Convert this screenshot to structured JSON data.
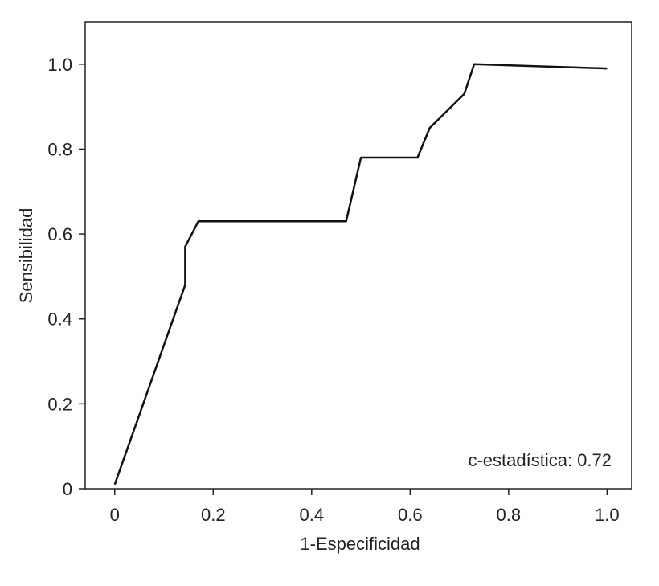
{
  "chart_data": {
    "type": "line",
    "title": "",
    "xlabel": "1-Especificidad",
    "ylabel": "Sensibilidad",
    "xlim": [
      -0.06,
      1.05
    ],
    "ylim": [
      0,
      1.1
    ],
    "x_ticks": [
      0,
      0.2,
      0.4,
      0.6,
      0.8,
      1.0
    ],
    "x_tick_labels": [
      "0",
      "0.2",
      "0.4",
      "0.6",
      "0.8",
      "1.0"
    ],
    "y_ticks": [
      0,
      0.2,
      0.4,
      0.6,
      0.8,
      1.0
    ],
    "y_tick_labels": [
      "0",
      "0.2",
      "0.4",
      "0.6",
      "0.8",
      "1.0"
    ],
    "grid": false,
    "legend": "none",
    "line_color": "#111111",
    "annotation": "c-estadística: 0.72",
    "series": [
      {
        "x": [
          0,
          0.143,
          0.143,
          0.17,
          0.47,
          0.5,
          0.615,
          0.64,
          0.71,
          0.73,
          1.0
        ],
        "y": [
          0.01,
          0.48,
          0.57,
          0.63,
          0.63,
          0.78,
          0.78,
          0.85,
          0.93,
          1.0,
          0.99
        ]
      }
    ]
  }
}
